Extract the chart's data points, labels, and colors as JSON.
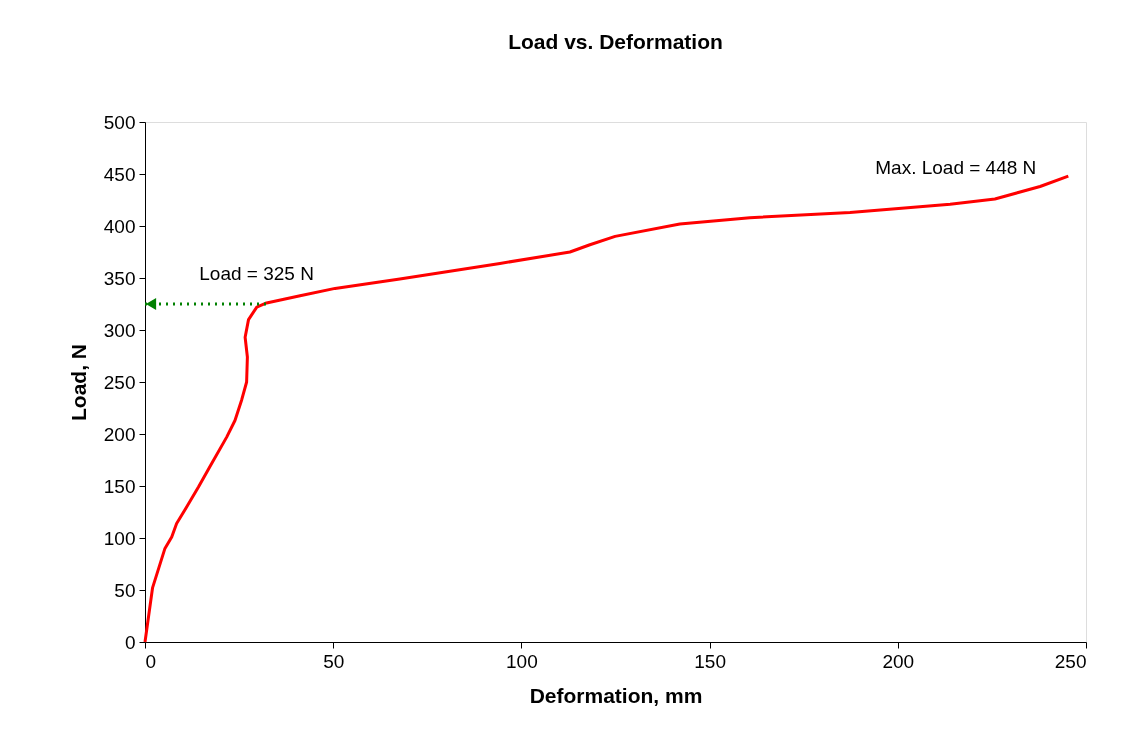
{
  "chart_data": {
    "type": "line",
    "title": "Load vs. Deformation",
    "xlabel": "Deformation, mm",
    "ylabel": "Load, N",
    "x": [
      0,
      2.0,
      5.3,
      7.1,
      8.4,
      11.1,
      14.2,
      17.3,
      21.7,
      23.9,
      25.7,
      27.0,
      27.2,
      26.6,
      27.5,
      29.7,
      32.3,
      41.2,
      50.5,
      67.7,
      94.3,
      112.9,
      118.2,
      124.9,
      142.1,
      160.7,
      187.3,
      213.9,
      225.8,
      237.8,
      245.3
    ],
    "series": [
      {
        "color": "#ff0000",
        "values": [
          0,
          52,
          90,
          101,
          114,
          130,
          149,
          169,
          197,
          213,
          233,
          250,
          274,
          293,
          310,
          322,
          326,
          333,
          340,
          349,
          364,
          375,
          382,
          390,
          402,
          408,
          413,
          421,
          426,
          438,
          448
        ]
      }
    ],
    "annotations": [
      {
        "text": "Load = 325 N",
        "x": 32.3,
        "y": 325
      },
      {
        "text": "Max. Load = 448 N",
        "x": 245.3,
        "y": 448
      }
    ],
    "xlim": [
      0,
      250
    ],
    "xticks": [
      0,
      50,
      100,
      150,
      200,
      250
    ],
    "ylim": [
      0,
      500
    ],
    "yticks": [
      0,
      50,
      100,
      150,
      200,
      250,
      300,
      350,
      400,
      450,
      500
    ],
    "grid": false,
    "legend": false,
    "marker": "none",
    "line_style": "solid"
  }
}
